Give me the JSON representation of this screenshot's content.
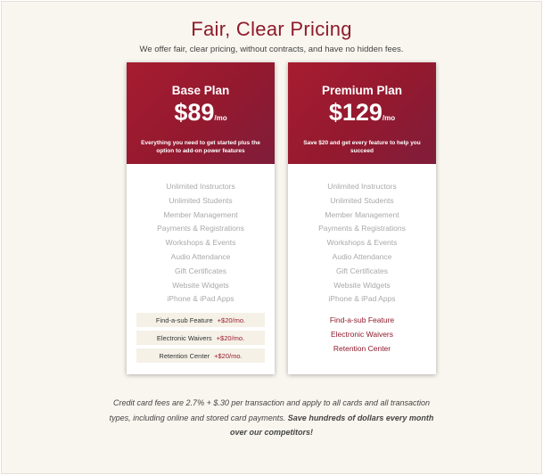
{
  "header": {
    "title": "Fair, Clear Pricing",
    "subtitle": "We offer fair, clear pricing, without contracts, and have no hidden fees."
  },
  "plans": [
    {
      "name": "Base Plan",
      "price": "$89",
      "period": "/mo",
      "description": "Everything you need to get started plus the option to add-on power features",
      "features": [
        "Unlimited Instructors",
        "Unlimited Students",
        "Member Management",
        "Payments & Registrations",
        "Workshops & Events",
        "Audio Attendance",
        "Gift Certificates",
        "Website Widgets",
        "iPhone & iPad Apps"
      ],
      "addons": [
        {
          "name": "Find-a-sub Feature",
          "price": "+$20/mo."
        },
        {
          "name": "Electronic Waivers",
          "price": "+$20/mo."
        },
        {
          "name": "Retention Center",
          "price": "+$20/mo."
        }
      ]
    },
    {
      "name": "Premium Plan",
      "price": "$129",
      "period": "/mo",
      "description": "Save $20 and get every feature to help you succeed",
      "features": [
        "Unlimited Instructors",
        "Unlimited Students",
        "Member Management",
        "Payments & Registrations",
        "Workshops & Events",
        "Audio Attendance",
        "Gift Certificates",
        "Website Widgets",
        "iPhone & iPad Apps"
      ],
      "included": [
        "Find-a-sub Feature",
        "Electronic Waivers",
        "Retention Center"
      ]
    }
  ],
  "footer": {
    "text": "Credit card fees are 2.7% + $.30 per transaction and apply to all cards and all transaction types, including online and stored card payments.",
    "emphasis": "Save hundreds of dollars every month over our competitors!"
  }
}
